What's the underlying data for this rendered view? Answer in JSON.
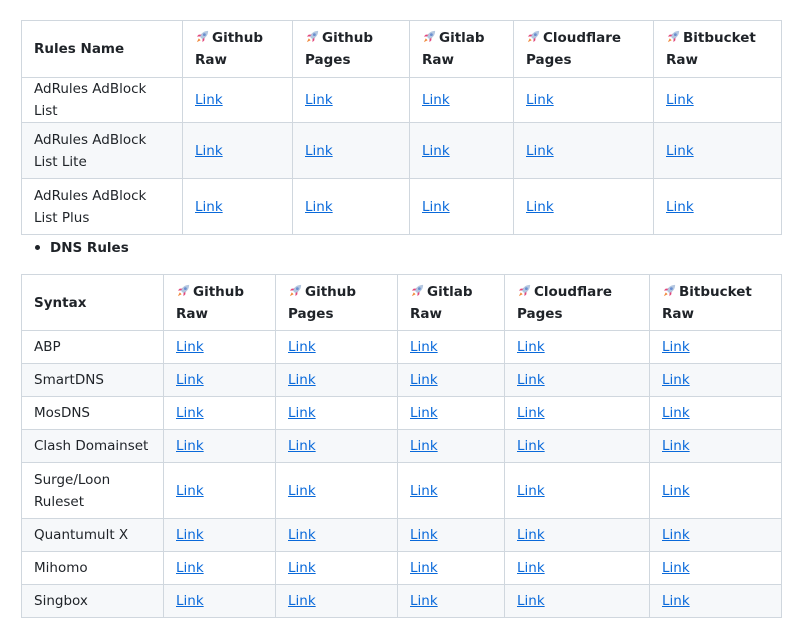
{
  "headers_icon": "rocket-icon",
  "link_color": "#0969da",
  "table1": {
    "columns": [
      "Rules Name",
      "Github Raw",
      "Github Pages",
      "Gitlab Raw",
      "Cloudflare Pages",
      "Bitbucket Raw"
    ],
    "rows": [
      {
        "name": "AdRules AdBlock List",
        "links": [
          "Link",
          "Link",
          "Link",
          "Link",
          "Link"
        ]
      },
      {
        "name": "AdRules AdBlock List Lite",
        "links": [
          "Link",
          "Link",
          "Link",
          "Link",
          "Link"
        ]
      },
      {
        "name": "AdRules AdBlock List Plus",
        "links": [
          "Link",
          "Link",
          "Link",
          "Link",
          "Link"
        ]
      }
    ]
  },
  "section_bullet": "DNS Rules",
  "table2": {
    "columns": [
      "Syntax",
      "Github Raw",
      "Github Pages",
      "Gitlab Raw",
      "Cloudflare Pages",
      "Bitbucket Raw"
    ],
    "rows": [
      {
        "name": "ABP",
        "links": [
          "Link",
          "Link",
          "Link",
          "Link",
          "Link"
        ]
      },
      {
        "name": "SmartDNS",
        "links": [
          "Link",
          "Link",
          "Link",
          "Link",
          "Link"
        ]
      },
      {
        "name": "MosDNS",
        "links": [
          "Link",
          "Link",
          "Link",
          "Link",
          "Link"
        ]
      },
      {
        "name": "Clash Domainset",
        "links": [
          "Link",
          "Link",
          "Link",
          "Link",
          "Link"
        ]
      },
      {
        "name": "Surge/Loon Ruleset",
        "links": [
          "Link",
          "Link",
          "Link",
          "Link",
          "Link"
        ]
      },
      {
        "name": "Quantumult X",
        "links": [
          "Link",
          "Link",
          "Link",
          "Link",
          "Link"
        ]
      },
      {
        "name": "Mihomo",
        "links": [
          "Link",
          "Link",
          "Link",
          "Link",
          "Link"
        ]
      },
      {
        "name": "Singbox",
        "links": [
          "Link",
          "Link",
          "Link",
          "Link",
          "Link"
        ]
      }
    ]
  }
}
